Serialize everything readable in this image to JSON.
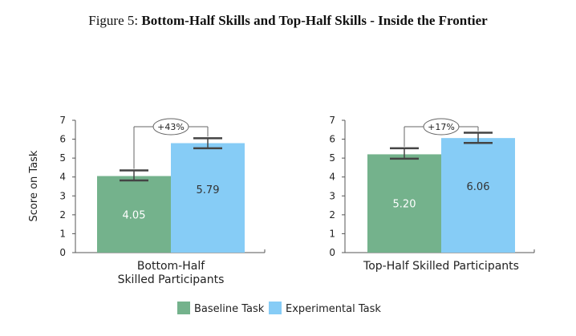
{
  "figure": {
    "label": "Figure 5:",
    "title": "Bottom-Half Skills and Top-Half Skills - Inside the Frontier"
  },
  "chart_data": {
    "type": "bar",
    "ylabel": "Score on Task",
    "ylim": [
      0,
      7
    ],
    "yticks": [
      0,
      1,
      2,
      3,
      4,
      5,
      6,
      7
    ],
    "legend_position": "bottom-center",
    "series": [
      {
        "name": "Baseline Task",
        "color": "#74b28c"
      },
      {
        "name": "Experimental Task",
        "color": "#86ccf6"
      }
    ],
    "panels": [
      {
        "category_lines": [
          "Bottom-Half",
          "Skilled Participants"
        ],
        "values": [
          4.05,
          5.79
        ],
        "value_labels": [
          "4.05",
          "5.79"
        ],
        "error_low": [
          3.82,
          5.52
        ],
        "error_high": [
          4.35,
          6.05
        ],
        "difference_label": "+43%"
      },
      {
        "category_lines": [
          "Top-Half Skilled Participants"
        ],
        "values": [
          5.2,
          6.06
        ],
        "value_labels": [
          "5.20",
          "6.06"
        ],
        "error_low": [
          4.97,
          5.8
        ],
        "error_high": [
          5.52,
          6.34
        ],
        "difference_label": "+17%"
      }
    ]
  }
}
